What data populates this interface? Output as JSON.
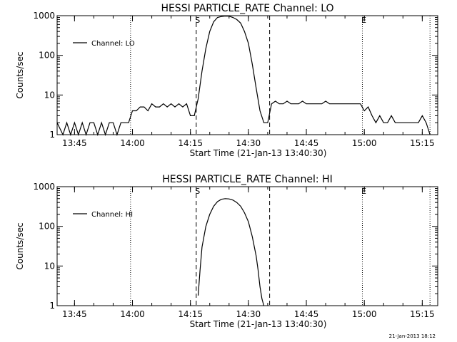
{
  "chart_data": [
    {
      "type": "line",
      "title": "HESSI PARTICLE_RATE Channel: LO",
      "xlabel": "Start Time (21-Jan-13 13:40:30)",
      "ylabel": "Counts/sec",
      "y_scale": "log",
      "xlim": [
        "13:40:30",
        "15:19:00"
      ],
      "ylim": [
        1,
        1000
      ],
      "x_ticks": [
        "13:45",
        "14:00",
        "14:15",
        "14:30",
        "14:45",
        "15:00",
        "15:15"
      ],
      "y_ticks": [
        "1",
        "10",
        "100",
        "1000"
      ],
      "legend": {
        "position": "top-left",
        "entries": [
          "Channel: LO"
        ]
      },
      "vlines": [
        {
          "style": "dotted",
          "time": "13:59:30",
          "label": ""
        },
        {
          "style": "dashed",
          "time": "14:16:30",
          "label": "S"
        },
        {
          "style": "dashed",
          "time": "14:35:30",
          "label": ""
        },
        {
          "style": "dotted",
          "time": "14:59:30",
          "label": "E"
        },
        {
          "style": "dotted",
          "time": "15:17:00",
          "label": ""
        }
      ],
      "series": [
        {
          "name": "Channel: LO",
          "x": [
            "13:40:30",
            "13:42",
            "13:43",
            "13:44",
            "13:45",
            "13:46",
            "13:47",
            "13:48",
            "13:49",
            "13:50",
            "13:51",
            "13:52",
            "13:53",
            "13:54",
            "13:55",
            "13:56",
            "13:57",
            "13:58",
            "13:59",
            "14:00",
            "14:01",
            "14:02",
            "14:03",
            "14:04",
            "14:05",
            "14:06",
            "14:07",
            "14:08",
            "14:09",
            "14:10",
            "14:11",
            "14:12",
            "14:13",
            "14:14",
            "14:15",
            "14:16",
            "14:17",
            "14:18",
            "14:19",
            "14:20",
            "14:21",
            "14:22",
            "14:23",
            "14:24",
            "14:25",
            "14:26",
            "14:27",
            "14:28",
            "14:29",
            "14:30",
            "14:31",
            "14:32",
            "14:33",
            "14:34",
            "14:35",
            "14:36",
            "14:37",
            "14:38",
            "14:39",
            "14:40",
            "14:41",
            "14:42",
            "14:43",
            "14:44",
            "14:45",
            "14:46",
            "14:47",
            "14:48",
            "14:49",
            "14:50",
            "14:51",
            "14:52",
            "14:53",
            "14:54",
            "14:55",
            "14:56",
            "14:57",
            "14:58",
            "14:59",
            "15:00",
            "15:01",
            "15:02",
            "15:03",
            "15:04",
            "15:05",
            "15:06",
            "15:07",
            "15:08",
            "15:09",
            "15:10",
            "15:11",
            "15:12",
            "15:13",
            "15:14",
            "15:15",
            "15:16",
            "15:17"
          ],
          "y": [
            2,
            1,
            2,
            1,
            2,
            1,
            2,
            1,
            2,
            2,
            1,
            2,
            1,
            2,
            2,
            1,
            2,
            2,
            2,
            4,
            4,
            5,
            5,
            4,
            6,
            5,
            5,
            6,
            5,
            6,
            5,
            6,
            5,
            6,
            3,
            3,
            8,
            40,
            150,
            400,
            700,
            900,
            950,
            980,
            970,
            900,
            800,
            650,
            400,
            200,
            60,
            15,
            4,
            2,
            2,
            6,
            7,
            6,
            6,
            7,
            6,
            6,
            6,
            7,
            6,
            6,
            6,
            6,
            6,
            7,
            6,
            6,
            6,
            6,
            6,
            6,
            6,
            6,
            6,
            4,
            5,
            3,
            2,
            3,
            2,
            2,
            3,
            2,
            2,
            2,
            2,
            2,
            2,
            2,
            3,
            2,
            1
          ],
          "color": "#000000"
        }
      ]
    },
    {
      "type": "line",
      "title": "HESSI PARTICLE_RATE Channel: HI",
      "xlabel": "Start Time (21-Jan-13 13:40:30)",
      "ylabel": "Counts/sec",
      "y_scale": "log",
      "xlim": [
        "13:40:30",
        "15:19:00"
      ],
      "ylim": [
        1,
        1000
      ],
      "x_ticks": [
        "13:45",
        "14:00",
        "14:15",
        "14:30",
        "14:45",
        "15:00",
        "15:15"
      ],
      "y_ticks": [
        "1",
        "10",
        "100",
        "1000"
      ],
      "legend": {
        "position": "top-left",
        "entries": [
          "Channel: HI"
        ]
      },
      "vlines": [
        {
          "style": "dotted",
          "time": "13:59:30",
          "label": ""
        },
        {
          "style": "dashed",
          "time": "14:16:30",
          "label": "S"
        },
        {
          "style": "dashed",
          "time": "14:35:30",
          "label": ""
        },
        {
          "style": "dotted",
          "time": "14:59:30",
          "label": "E"
        },
        {
          "style": "dotted",
          "time": "15:17:00",
          "label": ""
        }
      ],
      "series": [
        {
          "name": "Channel: HI",
          "x": [
            "14:17:00",
            "14:17:30",
            "14:18:00",
            "14:19:00",
            "14:20:00",
            "14:21:00",
            "14:22:00",
            "14:23:00",
            "14:24:00",
            "14:25:00",
            "14:26:00",
            "14:27:00",
            "14:28:00",
            "14:29:00",
            "14:30:00",
            "14:31:00",
            "14:32:00",
            "14:32:30",
            "14:33:00",
            "14:33:30",
            "14:34:00"
          ],
          "y": [
            1.8,
            8,
            30,
            100,
            200,
            320,
            420,
            480,
            500,
            490,
            460,
            400,
            320,
            220,
            130,
            55,
            18,
            8,
            3,
            1.5,
            1
          ],
          "color": "#000000"
        }
      ]
    }
  ],
  "footer": {
    "timestamp": "21-Jan-2013 18:12"
  }
}
